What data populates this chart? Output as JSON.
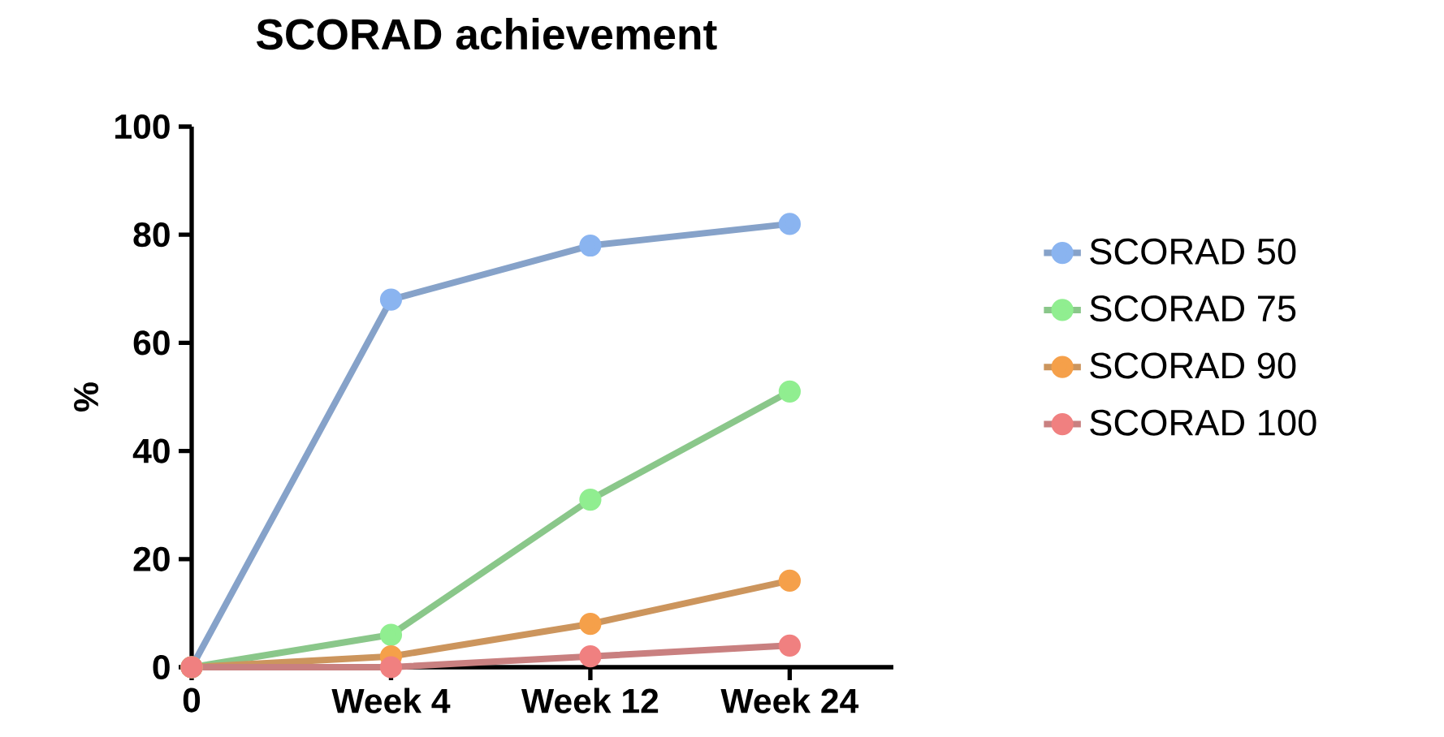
{
  "chart_data": {
    "type": "line",
    "title": "SCORAD achievement",
    "ylabel": "%",
    "categories": [
      "0",
      "Week 4",
      "Week 12",
      "Week 24"
    ],
    "series": [
      {
        "name": "SCORAD 50",
        "color": "#8ab4f0",
        "values": [
          0,
          68,
          78,
          82
        ]
      },
      {
        "name": "SCORAD 75",
        "color": "#90ee90",
        "values": [
          0,
          6,
          31,
          51
        ]
      },
      {
        "name": "SCORAD 90",
        "color": "#f5a04a",
        "values": [
          0,
          2,
          8,
          16
        ]
      },
      {
        "name": "SCORAD 100",
        "color": "#f08080",
        "values": [
          0,
          0,
          2,
          4
        ]
      }
    ],
    "ylim": [
      0,
      100
    ],
    "yticks": [
      0,
      20,
      40,
      60,
      80,
      100
    ],
    "grid": false,
    "legend": "right",
    "marker": "circle",
    "line_style": "solid"
  }
}
